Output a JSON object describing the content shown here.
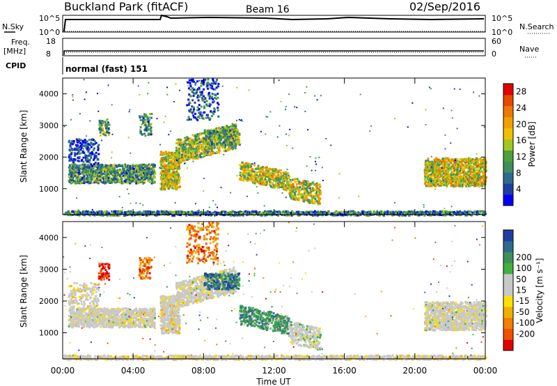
{
  "header": {
    "station": "Buckland Park (fitACF)",
    "beam": "Beam 16",
    "date": "02/Sep/2016"
  },
  "top_panel": {
    "left_label": "N.Sky",
    "left_ticks": [
      "10^5",
      "10^0"
    ],
    "right_ticks": [
      "10^5",
      "10^0"
    ],
    "right_label": "N.Search"
  },
  "freq_panel": {
    "left_label_1": "Freq.",
    "left_label_2": "[MHz]",
    "left_ticks": [
      "18",
      "8"
    ],
    "right_ticks": [
      "60",
      "0"
    ],
    "right_label": "Nave"
  },
  "cpid_panel": {
    "label": "CPID",
    "mode_text": "normal (fast) 151"
  },
  "colors": {
    "power_scale": [
      "#0000ff",
      "#1f3fa0",
      "#2e6b8f",
      "#3f8f5a",
      "#4fa03c",
      "#a0c820",
      "#f0c000",
      "#f0a000",
      "#f07800",
      "#e84800",
      "#e00000"
    ],
    "velocity_scale": [
      "#e00000",
      "#f05000",
      "#f08000",
      "#f0b000",
      "#ffe000",
      "#c8c8c8",
      "#c8c8c8",
      "#40b040",
      "#3f8f5a",
      "#2e6b8f",
      "#1f3fa0"
    ]
  },
  "chart_data": [
    {
      "type": "heatmap",
      "quantity": "Power",
      "ylabel": "Slant Range [km]",
      "yticks": [
        "1000",
        "2000",
        "3000",
        "4000"
      ],
      "ylim": [
        180,
        4500
      ],
      "xticks": [
        "00:00",
        "04:00",
        "08:00",
        "12:00",
        "16:00",
        "20:00",
        "00:00"
      ],
      "xlim_hours": [
        0,
        24
      ],
      "colorbar_label": "Power [dB]",
      "colorbar_ticks": [
        "4",
        "8",
        "12",
        "16",
        "20",
        "24",
        "28"
      ],
      "colorbar_range": [
        0,
        30
      ]
    },
    {
      "type": "heatmap",
      "quantity": "Velocity",
      "ylabel": "Slant Range [km]",
      "yticks": [
        "1000",
        "2000",
        "3000",
        "4000"
      ],
      "ylim": [
        180,
        4500
      ],
      "xticks": [
        "00:00",
        "04:00",
        "08:00",
        "12:00",
        "16:00",
        "20:00",
        "00:00"
      ],
      "xlabel": "Time UT",
      "xlim_hours": [
        0,
        24
      ],
      "colorbar_label": "Velocity [m s⁻¹]",
      "colorbar_ticks": [
        "-200",
        "-100",
        "-50",
        "-15",
        "15",
        "50",
        "100",
        "200"
      ],
      "colorbar_range": [
        -250,
        250
      ]
    }
  ]
}
